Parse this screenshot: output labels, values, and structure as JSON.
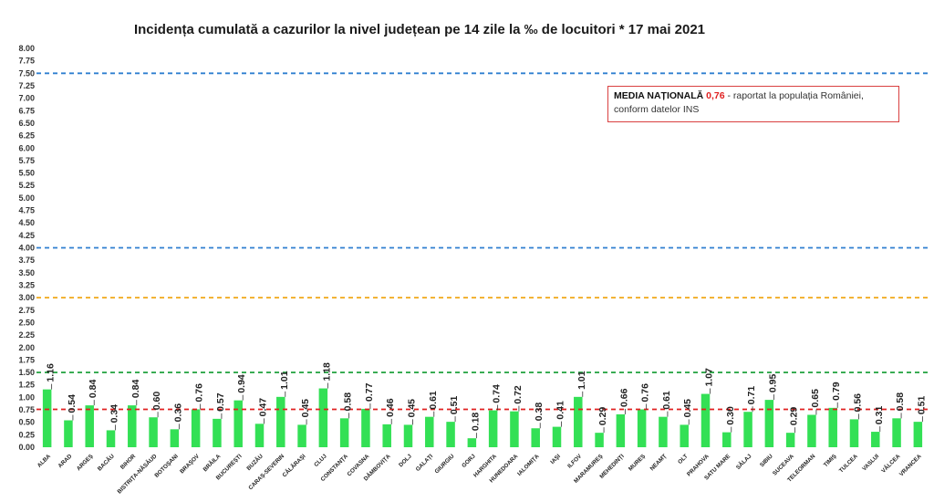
{
  "chart_data": {
    "type": "bar",
    "title": "Incidența cumulată a cazurilor la nivel județean pe 14 zile la ‰ de locuitori *  17 mai 2021",
    "categories": [
      "ALBA",
      "ARAD",
      "ARGEȘ",
      "BACĂU",
      "BIHOR",
      "BISTRIȚA-NĂSĂUD",
      "BOTOȘANI",
      "BRAȘOV",
      "BRĂILA",
      "BUCUREȘTI",
      "BUZĂU",
      "CARAȘ-SEVERIN",
      "CĂLĂRAȘI",
      "CLUJ",
      "CONSTANȚA",
      "COVASNA",
      "DÂMBOVIȚA",
      "DOLJ",
      "GALAȚI",
      "GIURGIU",
      "GORJ",
      "HARGHITA",
      "HUNEDOARA",
      "IALOMIȚA",
      "IAȘI",
      "ILFOV",
      "MARAMUREȘ",
      "MEHEDINȚI",
      "MUREȘ",
      "NEAMȚ",
      "OLT",
      "PRAHOVA",
      "SATU MARE",
      "SĂLAJ",
      "SIBIU",
      "SUCEAVA",
      "TELEORMAN",
      "TIMIȘ",
      "TULCEA",
      "VASLUI",
      "VÂLCEA",
      "VRANCEA"
    ],
    "values": [
      1.16,
      0.54,
      0.84,
      0.34,
      0.84,
      0.6,
      0.36,
      0.76,
      0.57,
      0.94,
      0.47,
      1.01,
      0.45,
      1.18,
      0.58,
      0.77,
      0.46,
      0.45,
      0.61,
      0.51,
      0.18,
      0.74,
      0.72,
      0.38,
      0.41,
      1.01,
      0.29,
      0.66,
      0.76,
      0.61,
      0.45,
      1.07,
      0.3,
      0.71,
      0.95,
      0.29,
      0.65,
      0.79,
      0.56,
      0.31,
      0.58,
      0.51
    ],
    "value_labels": [
      "1.16",
      "0.54",
      "0.84",
      "0.34",
      "0.84",
      "0.60",
      "0.36",
      "0.76",
      "0.57",
      "0.94",
      "0.47",
      "1.01",
      "0.45",
      "1.18",
      "0.58",
      "0.77",
      "0.46",
      "0.45",
      "0.61",
      "0.51",
      "0.18",
      "0.74",
      "0.72",
      "0.38",
      "0.41",
      "1.01",
      "0.29",
      "0.66",
      "0.76",
      "0.61",
      "0.45",
      "1.07",
      "0.30",
      "0.71",
      "0.95",
      "0.29",
      "0.65",
      "0.79",
      "0.56",
      "0.31",
      "0.58",
      "0.51"
    ],
    "yticks": [
      "0.00",
      "0.25",
      "0.50",
      "0.75",
      "1.00",
      "1.25",
      "1.50",
      "1.75",
      "2.00",
      "2.25",
      "2.50",
      "2.75",
      "3.00",
      "3.25",
      "3.50",
      "3.75",
      "4.00",
      "4.25",
      "4.50",
      "4.75",
      "5.00",
      "5.25",
      "5.50",
      "5.75",
      "6.00",
      "6.25",
      "6.50",
      "6.75",
      "7.00",
      "7.25",
      "7.50",
      "7.75",
      "8.00"
    ],
    "ylim": [
      0,
      8
    ],
    "bar_color": "#33e055",
    "reference_lines": [
      {
        "value": 7.5,
        "color": "#2f7fd0"
      },
      {
        "value": 4.0,
        "color": "#2f7fd0"
      },
      {
        "value": 3.0,
        "color": "#f0a818"
      },
      {
        "value": 1.5,
        "color": "#2ea84a"
      },
      {
        "value": 0.76,
        "color": "#e02020"
      }
    ],
    "annotation": {
      "label": "MEDIA NAȚIONALĂ",
      "value": "0,76",
      "text1": " - raportat la populația României,",
      "text2": "conform datelor INS"
    },
    "xlabel": "",
    "ylabel": ""
  }
}
